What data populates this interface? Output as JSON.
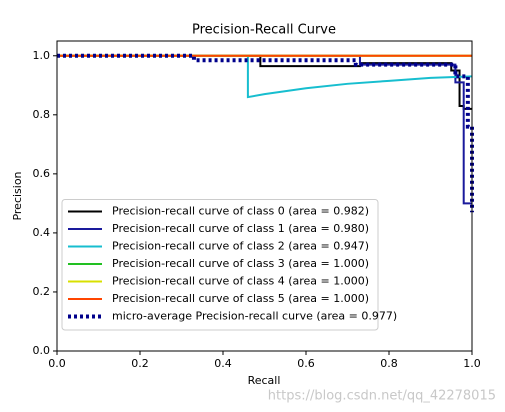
{
  "chart_data": {
    "type": "line",
    "title": "Precision-Recall Curve",
    "xlabel": "Recall",
    "ylabel": "Precision",
    "xlim": [
      0,
      1
    ],
    "ylim": [
      0,
      1.05
    ],
    "xticks": [
      {
        "value": 0,
        "label": "0.0"
      },
      {
        "value": 0.2,
        "label": "0.2"
      },
      {
        "value": 0.4,
        "label": "0.4"
      },
      {
        "value": 0.6,
        "label": "0.6"
      },
      {
        "value": 0.8,
        "label": "0.8"
      },
      {
        "value": 1,
        "label": "1.0"
      }
    ],
    "yticks": [
      {
        "value": 0,
        "label": "0.0"
      },
      {
        "value": 0.2,
        "label": "0.2"
      },
      {
        "value": 0.4,
        "label": "0.4"
      },
      {
        "value": 0.6,
        "label": "0.6"
      },
      {
        "value": 0.8,
        "label": "0.8"
      },
      {
        "value": 1,
        "label": "1.0"
      }
    ],
    "legend": "lower left",
    "watermark": "https://blog.csdn.net/qq_42278015",
    "series": [
      {
        "name": "Precision-recall curve of class 0 (area = 0.982)",
        "color": "#000000",
        "x": [
          0,
          0.49,
          0.49,
          0.73,
          0.73,
          0.95,
          0.95,
          0.97,
          0.97,
          0.98,
          0.98,
          1
        ],
        "values": [
          1,
          1,
          0.965,
          0.965,
          0.975,
          0.975,
          0.95,
          0.95,
          0.83,
          0.83,
          0.82,
          0.82
        ]
      },
      {
        "name": "Precision-recall curve of class 1 (area = 0.980)",
        "color": "#1a1a9c",
        "x": [
          0,
          0.73,
          0.73,
          0.96,
          0.96,
          0.98,
          0.98,
          1
        ],
        "values": [
          1,
          1,
          0.97,
          0.97,
          0.91,
          0.91,
          0.5,
          0.5
        ]
      },
      {
        "name": "Precision-recall curve of class 2 (area = 0.947)",
        "color": "#17becf",
        "x": [
          0,
          0.46,
          0.46,
          0.5,
          0.6,
          0.7,
          0.8,
          0.9,
          1
        ],
        "values": [
          1,
          1,
          0.86,
          0.87,
          0.89,
          0.905,
          0.915,
          0.925,
          0.93
        ]
      },
      {
        "name": "Precision-recall curve of class 3 (area = 1.000)",
        "color": "#22c022",
        "x": [
          0,
          1
        ],
        "values": [
          1,
          1
        ]
      },
      {
        "name": "Precision-recall curve of class 4 (area = 1.000)",
        "color": "#d8e000",
        "x": [
          0,
          1
        ],
        "values": [
          1,
          1
        ]
      },
      {
        "name": "Precision-recall curve of class 5 (area = 1.000)",
        "color": "#ff4500",
        "x": [
          0,
          1
        ],
        "values": [
          1,
          1
        ]
      },
      {
        "name": "micro-average Precision-recall curve (area = 0.977)",
        "color": "#00008b",
        "dotted": true,
        "x": [
          0,
          0.33,
          0.33,
          0.72,
          0.72,
          0.96,
          0.96,
          0.99,
          0.99,
          1,
          1
        ],
        "values": [
          1,
          1,
          0.985,
          0.985,
          0.97,
          0.97,
          0.93,
          0.93,
          0.76,
          0.76,
          0.47
        ]
      }
    ]
  }
}
